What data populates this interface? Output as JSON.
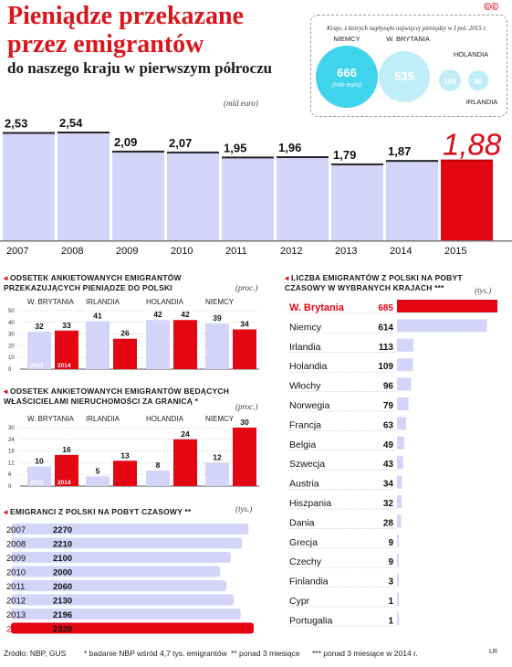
{
  "header": {
    "title": "Pieniądze przekazane przez emigrantów",
    "subtitle": "do naszego kraju w pierwszym półroczu",
    "unit": "(mld euro)",
    "logo": "©©"
  },
  "inset": {
    "caption": "Kraje, z których napłynęło najwięcej pieniędzy w I poł. 2015 r.",
    "circles": [
      {
        "country": "NIEMCY",
        "value": "666",
        "sub": "(mln euro)",
        "color": "#3fd3ec"
      },
      {
        "country": "W. BRYTANIA",
        "value": "535",
        "sub": "",
        "color": "#bfeef8"
      },
      {
        "country": "HOLANDIA",
        "value": "104",
        "sub": "",
        "color": "#bfeef8"
      },
      {
        "country": "IRLANDIA",
        "value": "98",
        "sub": "",
        "color": "#bfeef8"
      }
    ]
  },
  "labels": {
    "chart2_title_l1": "Odsetek ankietowanych emigrantów",
    "chart2_title_l2": "przekazujących pieniądze do Polski",
    "chart2_unit": "(proc.)",
    "chart3_title_l1": "Odsetek ankietowanych emigrantów będących",
    "chart3_title_l2": "właścicielami nieruchomości za granicą *",
    "chart3_unit": "(proc.)",
    "chart4_title": "Emigranci z Polski na pobyt czasowy **",
    "chart4_unit": "(tys.)",
    "chart5_title_l1": "Liczba emigrantów z Polski na pobyt",
    "chart5_title_l2": "czasowy w wybranych krajach ***",
    "chart5_unit": "(tys.)"
  },
  "footer": {
    "source": "Źródło: NBP, GUS",
    "note1": "* badanie NBP wśród 4,7 tys. emigrantów",
    "note2": "** ponad 3 miesiące",
    "note3": "*** ponad 3 miesiące w 2014 r.",
    "credit": "LR"
  },
  "colors": {
    "accent": "#e30613",
    "bar": "#d4d4f8",
    "bar_dark": "#cfcff5",
    "cyan": "#3fd3ec",
    "pale_cyan": "#bfeef8"
  },
  "chart_data": [
    {
      "type": "bar",
      "title": "Pieniądze przekazane przez emigrantów do naszego kraju w pierwszym półroczu",
      "ylabel": "(mld euro)",
      "categories": [
        "2007",
        "2008",
        "2009",
        "2010",
        "2011",
        "2012",
        "2013",
        "2014",
        "2015"
      ],
      "values": [
        2.53,
        2.54,
        2.09,
        2.07,
        1.95,
        1.96,
        1.79,
        1.87,
        1.88
      ],
      "value_labels": [
        "2,53",
        "2,54",
        "2,09",
        "2,07",
        "1,95",
        "1,96",
        "1,79",
        "1,87",
        "1,88"
      ],
      "highlight": "2015",
      "ylim": [
        0,
        2.7
      ]
    },
    {
      "type": "bar",
      "title": "Odsetek ankietowanych emigrantów przekazujących pieniądze do Polski",
      "ylabel": "(proc.)",
      "categories": [
        "W. BRYTANIA",
        "IRLANDIA",
        "HOLANDIA",
        "NIEMCY"
      ],
      "series": [
        {
          "name": "2012",
          "values": [
            32,
            41,
            42,
            39
          ]
        },
        {
          "name": "2014",
          "values": [
            33,
            26,
            42,
            34
          ]
        }
      ],
      "yticks": [
        0,
        10,
        20,
        30,
        40,
        50
      ],
      "ylim": [
        0,
        50
      ]
    },
    {
      "type": "bar",
      "title": "Odsetek ankietowanych emigrantów będących właścicielami nieruchomości za granicą *",
      "ylabel": "(proc.)",
      "categories": [
        "W. BRYTANIA",
        "IRLANDIA",
        "HOLANDIA",
        "NIEMCY"
      ],
      "series": [
        {
          "name": "2012",
          "values": [
            10,
            5,
            8,
            12
          ]
        },
        {
          "name": "2014",
          "values": [
            16,
            13,
            24,
            30
          ]
        }
      ],
      "yticks": [
        0,
        6,
        12,
        18,
        24,
        30
      ],
      "ylim": [
        0,
        30
      ]
    },
    {
      "type": "bar",
      "orientation": "horizontal",
      "title": "Emigranci z Polski na pobyt czasowy **",
      "ylabel": "(tys.)",
      "categories": [
        "2007",
        "2008",
        "2009",
        "2010",
        "2011",
        "2012",
        "2013",
        "2014"
      ],
      "values": [
        2270,
        2210,
        2100,
        2000,
        2060,
        2130,
        2196,
        2320
      ],
      "highlight": "2014"
    },
    {
      "type": "bar",
      "orientation": "horizontal",
      "title": "Liczba emigrantów z Polski na pobyt czasowy w wybranych krajach ***",
      "ylabel": "(tys.)",
      "categories": [
        "W. Brytania",
        "Niemcy",
        "Irlandia",
        "Holandia",
        "Włochy",
        "Norwegia",
        "Francja",
        "Belgia",
        "Szwecja",
        "Austria",
        "Hiszpania",
        "Dania",
        "Grecja",
        "Czechy",
        "Finlandia",
        "Cypr",
        "Portugalia"
      ],
      "values": [
        685,
        614,
        113,
        109,
        96,
        79,
        63,
        49,
        43,
        34,
        32,
        28,
        9,
        9,
        3,
        1,
        1
      ],
      "highlight": "W. Brytania"
    }
  ]
}
